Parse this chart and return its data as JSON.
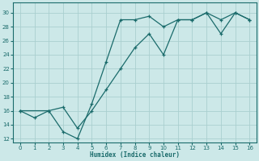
{
  "xlabel": "Humidex (Indice chaleur)",
  "ylabel": "",
  "xlim": [
    -0.5,
    16.5
  ],
  "ylim": [
    11.5,
    31.5
  ],
  "xticks": [
    0,
    1,
    2,
    3,
    4,
    5,
    6,
    7,
    8,
    9,
    10,
    11,
    12,
    13,
    14,
    15,
    16
  ],
  "yticks": [
    12,
    14,
    16,
    18,
    20,
    22,
    24,
    26,
    28,
    30
  ],
  "bg_color": "#cce8e8",
  "grid_color": "#aacfcf",
  "line_color": "#1a6b6b",
  "line1_x": [
    0,
    1,
    2,
    3,
    4,
    5,
    6,
    7,
    8,
    9,
    10,
    11,
    12,
    13,
    14,
    15,
    16
  ],
  "line1_y": [
    16,
    15,
    16,
    13,
    12,
    17,
    23,
    29,
    29,
    29.5,
    28,
    29,
    29,
    30,
    29,
    30,
    29
  ],
  "line2_x": [
    0,
    2,
    3,
    4,
    5,
    6,
    7,
    8,
    9,
    10,
    11,
    12,
    13,
    14,
    15,
    16
  ],
  "line2_y": [
    16,
    16,
    16.5,
    13.5,
    16,
    19,
    22,
    25,
    27,
    24,
    29,
    29,
    30,
    27,
    30,
    29
  ]
}
